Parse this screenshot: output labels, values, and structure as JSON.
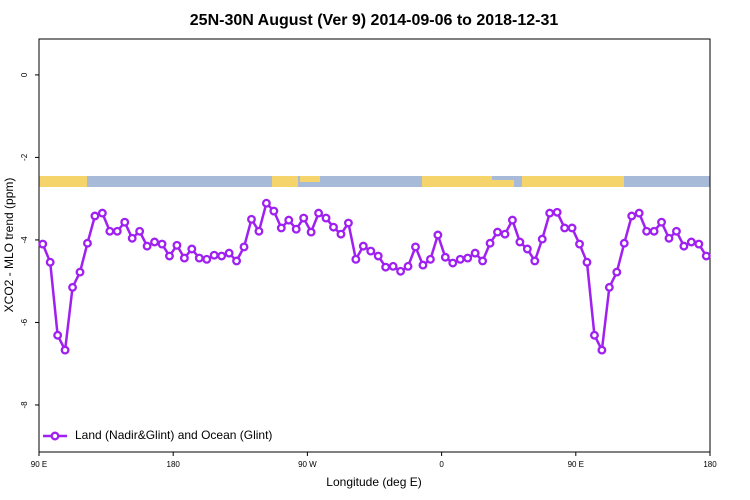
{
  "chart_data": {
    "type": "line",
    "title": "25N-30N August (Ver 9)   2014-09-06 to 2018-12-31",
    "x_label": "Longitude (deg E)",
    "y_label": "XCO2 - MLO trend (ppm)",
    "x": [
      92.5,
      97.5,
      102.5,
      107.5,
      112.5,
      117.5,
      122.5,
      127.5,
      132.5,
      137.5,
      142.5,
      147.5,
      152.5,
      157.5,
      162.5,
      167.5,
      172.5,
      177.5,
      182.5,
      187.5,
      192.5,
      197.5,
      202.5,
      207.5,
      212.5,
      217.5,
      222.5,
      227.5,
      232.5,
      237.5,
      242.5,
      247.5,
      252.5,
      257.5,
      262.5,
      267.5,
      272.5,
      277.5,
      282.5,
      287.5,
      292.5,
      297.5,
      302.5,
      307.5,
      312.5,
      317.5,
      322.5,
      327.5,
      332.5,
      337.5,
      342.5,
      347.5,
      352.5,
      357.5,
      362.5,
      367.5,
      372.5,
      377.5,
      382.5,
      387.5,
      392.5,
      397.5,
      402.5,
      407.5,
      412.5,
      417.5,
      422.5,
      427.5,
      432.5,
      437.5,
      442.5,
      447.5,
      452.5,
      457.5,
      462.5,
      467.5,
      472.5,
      477.5,
      482.5,
      487.5,
      492.5,
      497.5,
      502.5,
      507.5,
      512.5,
      517.5,
      522.5,
      527.5,
      532.5,
      537.5
    ],
    "series": [
      {
        "name": "Land (Nadir&Glint) and Ocean (Glint)",
        "color": "#a020f0",
        "values": [
          -4.1,
          -4.54,
          -6.31,
          -6.67,
          -5.15,
          -4.78,
          -4.08,
          -3.42,
          -3.35,
          -3.79,
          -3.79,
          -3.57,
          -3.96,
          -3.79,
          -4.15,
          -4.05,
          -4.1,
          -4.39,
          -4.13,
          -4.44,
          -4.22,
          -4.44,
          -4.47,
          -4.37,
          -4.39,
          -4.32,
          -4.51,
          -4.17,
          -3.5,
          -3.79,
          -3.11,
          -3.3,
          -3.71,
          -3.52,
          -3.74,
          -3.47,
          -3.81,
          -3.35,
          -3.47,
          -3.69,
          -3.86,
          -3.59,
          -4.47,
          -4.15,
          -4.27,
          -4.39,
          -4.66,
          -4.64,
          -4.76,
          -4.64,
          -4.17,
          -4.61,
          -4.47,
          -3.88,
          -4.42,
          -4.56,
          -4.47,
          -4.44,
          -4.32,
          -4.51,
          -4.08,
          -3.81,
          -3.86,
          -3.52,
          -4.05,
          -4.22,
          -4.51,
          -3.98,
          -3.35,
          -3.33,
          -3.71,
          -3.71,
          -4.1,
          -4.54,
          -6.31,
          -6.67,
          -5.15,
          -4.78,
          -4.08,
          -3.42,
          -3.35,
          -3.79,
          -3.79,
          -3.57,
          -3.96,
          -3.79,
          -4.15,
          -4.05,
          -4.1,
          -4.39
        ]
      }
    ],
    "xlim": [
      90,
      540
    ],
    "xticks": [
      {
        "value": 90,
        "label": "90 E"
      },
      180,
      {
        "value": 270,
        "label": "90 W"
      },
      {
        "value": 360,
        "label": "0"
      },
      {
        "value": 450,
        "label": "90 E"
      },
      {
        "value": 540,
        "label": "180"
      }
    ],
    "ylim": [
      -9.14,
      0.87
    ],
    "yticks": [
      0,
      -2,
      -4,
      -6,
      -8
    ],
    "legend": "bottom-left"
  }
}
